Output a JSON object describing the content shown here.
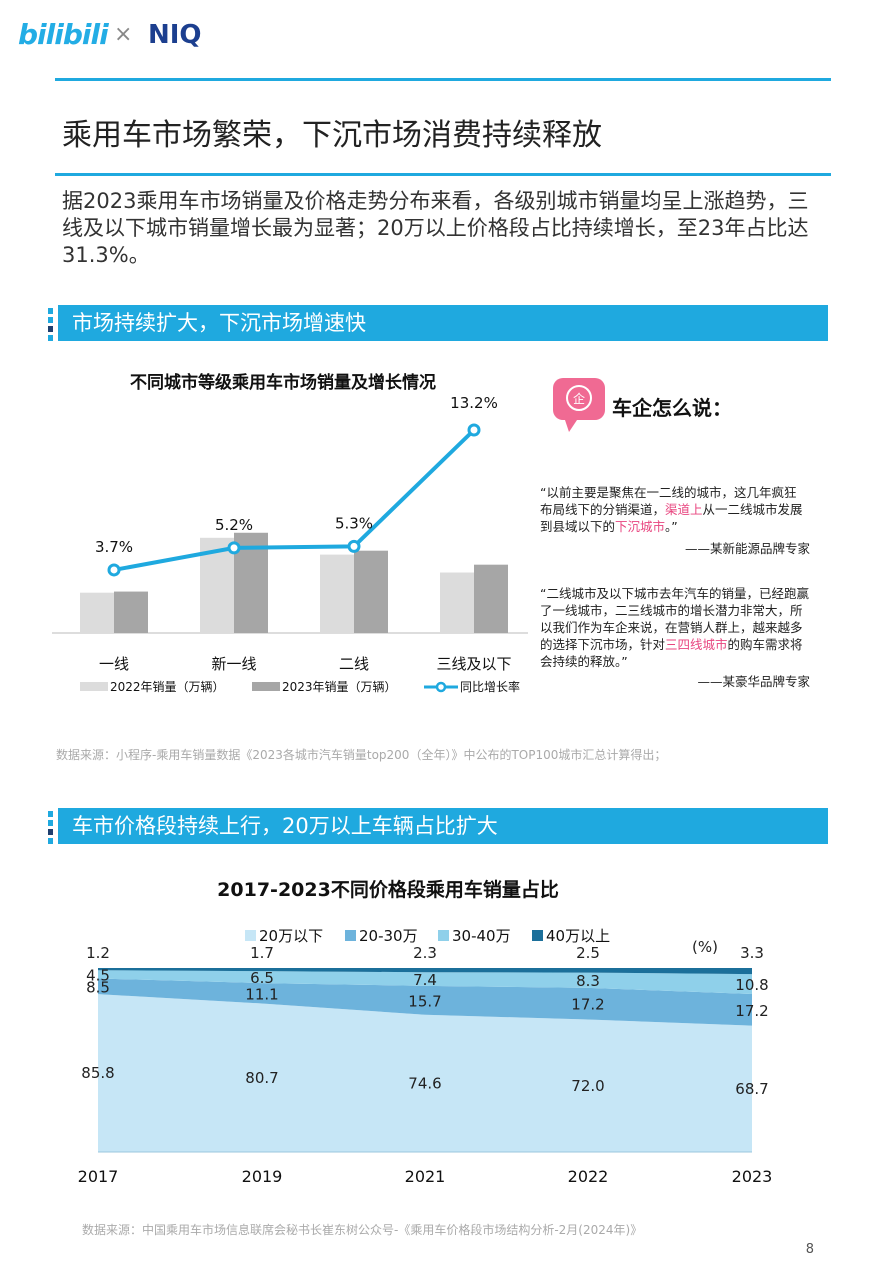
{
  "header": {
    "brand1": "bilibili",
    "times": "×",
    "brand2": "NIQ"
  },
  "page_title": "乘用车市场繁荣，下沉市场消费持续释放",
  "intro": "据2023乘用车市场销量及价格走势分布来看，各级别城市销量均呈上涨趋势，三线及以下城市销量增长最为显著；20万以上价格段占比持续增长，至23年占比达31.3%。",
  "section1": {
    "title": "市场持续扩大，下沉市场增速快"
  },
  "section2": {
    "title": "车市价格段持续上行，20万以上车辆占比扩大"
  },
  "expert": {
    "heading": "车企怎么说：",
    "quote1_a": "“以前主要是聚焦在一二线的城市，这几年疯狂布局线下的分销渠道，",
    "quote1_h1": "渠道上",
    "quote1_b": "从一二线城市发展到县域以下的",
    "quote1_h2": "下沉城市",
    "quote1_c": "。”",
    "who1": "——某新能源品牌专家",
    "quote2_a": "“二线城市及以下城市去年汽车的销量，已经跑赢了一线城市，二三线城市的增长潜力非常大，所以我们作为车企来说，在营销人群上，越来越多的选择下沉市场，针对",
    "quote2_h": "三四线城市",
    "quote2_b": "的购车需求将会持续的释放。”",
    "who2": "——某豪华品牌专家"
  },
  "source1": "数据来源：小程序-乘用车销量数据《2023各城市汽车销量top200（全年）》中公布的TOP100城市汇总计算得出；",
  "source2": "数据来源：中国乘用车市场信息联席会秘书长崔东树公众号-《乘用车价格段市场结构分析-2月(2024年)》",
  "page_number": "8",
  "colors": {
    "accent": "#1fa9df",
    "pink": "#e8457f",
    "bar2022": "#dcdcdc",
    "bar2023": "#a6a6a6",
    "line": "#1fa9df",
    "band1": "#c6e6f6",
    "band2": "#6db3dc",
    "band3": "#8fd0ea",
    "band4": "#1b6f9a"
  },
  "chart_data": [
    {
      "type": "bar",
      "title": "不同城市等级乘用车市场销量及增长情况",
      "categories": [
        "一线",
        "新一线",
        "二线",
        "三线及以下"
      ],
      "series": [
        {
          "name": "2022年销量（万辆）",
          "values": [
            72,
            170,
            140,
            108
          ]
        },
        {
          "name": "2023年销量（万辆）",
          "values": [
            74,
            179,
            147,
            122
          ]
        },
        {
          "name": "同比增长率",
          "values": [
            3.7,
            5.2,
            5.3,
            13.2
          ],
          "labels": [
            "3.7%",
            "5.2%",
            "5.3%",
            "13.2%"
          ]
        }
      ],
      "legend": "bottom"
    },
    {
      "type": "area",
      "title": "2017-2023不同价格段乘用车销量占比",
      "unit": "(%)",
      "x": [
        "2017",
        "2019",
        "2021",
        "2022",
        "2023"
      ],
      "series": [
        {
          "name": "20万以下",
          "values": [
            85.8,
            80.7,
            74.6,
            72.0,
            68.7
          ],
          "labels": [
            "85.8",
            "80.7",
            "74.6",
            "72.0",
            "68.7"
          ]
        },
        {
          "name": "20-30万",
          "values": [
            8.5,
            11.1,
            15.7,
            17.2,
            17.2
          ],
          "labels": [
            "8.5",
            "11.1",
            "15.7",
            "17.2",
            "17.2"
          ]
        },
        {
          "name": "30-40万",
          "values": [
            4.5,
            6.5,
            7.4,
            8.3,
            10.8
          ],
          "labels": [
            "4.5",
            "6.5",
            "7.4",
            "8.3",
            "10.8"
          ]
        },
        {
          "name": "40万以上",
          "values": [
            1.2,
            1.7,
            2.3,
            2.5,
            3.3
          ],
          "labels": [
            "1.2",
            "1.7",
            "2.3",
            "2.5",
            "3.3"
          ]
        }
      ],
      "legend": "top"
    }
  ]
}
